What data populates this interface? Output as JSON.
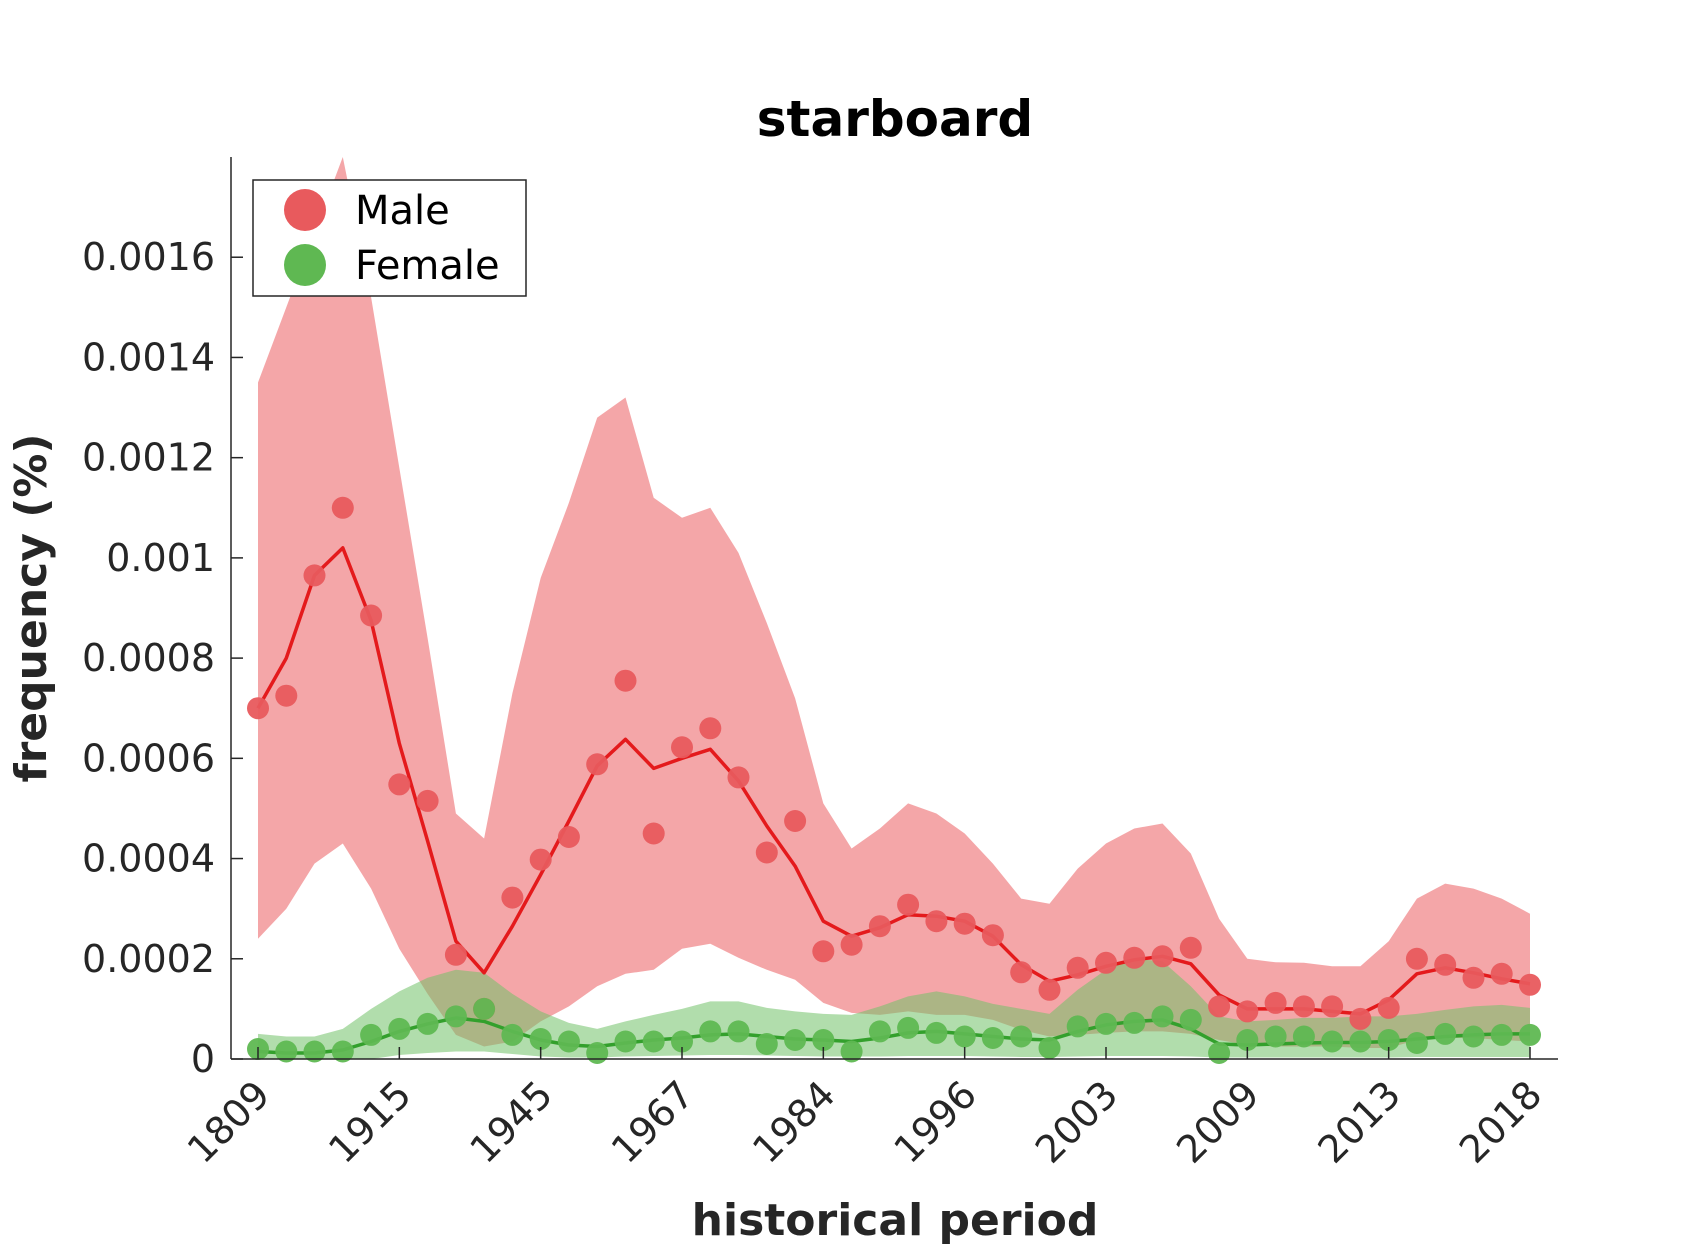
{
  "chart_data": {
    "type": "line",
    "title": "starboard",
    "xlabel": "historical period",
    "ylabel": "frequency (%)",
    "ylim": [
      0,
      0.0018
    ],
    "yticks": [
      "0",
      "0.0002",
      "0.0004",
      "0.0006",
      "0.0008",
      "0.001",
      "0.0012",
      "0.0014",
      "0.0016"
    ],
    "ytick_values": [
      0,
      0.0002,
      0.0004,
      0.0006,
      0.0008,
      0.001,
      0.0012,
      0.0014,
      0.0016
    ],
    "xtick_labels": [
      "1809",
      "1915",
      "1945",
      "1967",
      "1984",
      "1996",
      "2003",
      "2009",
      "2013",
      "2018"
    ],
    "xtick_indices": [
      0,
      5,
      10,
      15,
      20,
      25,
      30,
      35,
      40,
      45
    ],
    "legend_position": "top-left",
    "grid": false,
    "n_points": 46,
    "series": [
      {
        "name": "Male",
        "color": "#e41a1c",
        "points": [
          0.0007,
          0.000725,
          0.000965,
          0.0011,
          0.000885,
          0.000548,
          0.000515,
          0.000208,
          0.0001,
          0.000322,
          0.000398,
          0.000443,
          0.000588,
          0.000755,
          0.00045,
          0.000622,
          0.00066,
          0.000562,
          0.000412,
          0.000475,
          0.000215,
          0.000228,
          0.000265,
          0.000308,
          0.000275,
          0.00027,
          0.000247,
          0.000173,
          0.000138,
          0.000182,
          0.000192,
          0.000202,
          0.000205,
          0.000222,
          0.000105,
          9.5e-05,
          0.000112,
          0.000105,
          0.000105,
          8e-05,
          0.000102,
          0.0002,
          0.000188,
          0.000162,
          0.00017,
          0.000148
        ],
        "line": [
          0.0007,
          0.0008,
          0.000965,
          0.00102,
          0.000875,
          0.00063,
          0.000435,
          0.000235,
          0.000172,
          0.000265,
          0.000368,
          0.000475,
          0.000585,
          0.000638,
          0.00058,
          0.0006,
          0.000618,
          0.000555,
          0.000465,
          0.000385,
          0.000275,
          0.000245,
          0.000262,
          0.000288,
          0.000285,
          0.000275,
          0.000245,
          0.000188,
          0.000155,
          0.000168,
          0.000185,
          0.000198,
          0.000205,
          0.00019,
          0.000128,
          0.0001,
          0.0001,
          0.0001,
          9.5e-05,
          9e-05,
          0.000118,
          0.00017,
          0.000182,
          0.000172,
          0.00016,
          0.00015
        ],
        "upper": [
          0.00135,
          0.0015,
          0.00165,
          0.0018,
          0.00152,
          0.00118,
          0.00084,
          0.00049,
          0.00044,
          0.00073,
          0.00096,
          0.00111,
          0.00128,
          0.00132,
          0.00112,
          0.00108,
          0.0011,
          0.00101,
          0.00087,
          0.00072,
          0.00051,
          0.00042,
          0.00046,
          0.00051,
          0.00049,
          0.00045,
          0.00039,
          0.00032,
          0.00031,
          0.00038,
          0.00043,
          0.00046,
          0.00047,
          0.00041,
          0.00028,
          0.0002,
          0.000193,
          0.000192,
          0.000185,
          0.000185,
          0.000235,
          0.00032,
          0.00035,
          0.00034,
          0.00032,
          0.00029
        ],
        "lower": [
          0.00024,
          0.0003,
          0.00039,
          0.00043,
          0.00034,
          0.00022,
          0.00013,
          4.8e-05,
          2.5e-05,
          3.5e-05,
          7.5e-05,
          0.000105,
          0.000145,
          0.00017,
          0.000178,
          0.00022,
          0.00023,
          0.000202,
          0.000178,
          0.000158,
          0.000112,
          9.2e-05,
          8.8e-05,
          9.5e-05,
          8.8e-05,
          8.8e-05,
          7.8e-05,
          5.8e-05,
          4.5e-05,
          4.8e-05,
          5.2e-05,
          5.5e-05,
          5.5e-05,
          5e-05,
          3.8e-05,
          2.8e-05,
          2.5e-05,
          2.5e-05,
          2.5e-05,
          2.2e-05,
          2.2e-05,
          3.8e-05,
          4.2e-05,
          4.2e-05,
          3.8e-05,
          3.5e-05
        ]
      },
      {
        "name": "Female",
        "color": "#33a02c",
        "points": [
          2e-05,
          1.5e-05,
          1.5e-05,
          1.5e-05,
          4.8e-05,
          6e-05,
          7e-05,
          8.5e-05,
          0.0001,
          4.8e-05,
          4e-05,
          3.5e-05,
          1.2e-05,
          3.5e-05,
          3.5e-05,
          3.5e-05,
          5.5e-05,
          5.5e-05,
          3e-05,
          3.8e-05,
          3.8e-05,
          1.5e-05,
          5.5e-05,
          6.2e-05,
          5.2e-05,
          4.5e-05,
          4.2e-05,
          4.5e-05,
          2.2e-05,
          6.5e-05,
          7e-05,
          7.2e-05,
          8.5e-05,
          7.8e-05,
          1.2e-05,
          3.8e-05,
          4.5e-05,
          4.5e-05,
          3.5e-05,
          3.5e-05,
          3.8e-05,
          3.2e-05,
          5e-05,
          4.5e-05,
          4.8e-05,
          4.8e-05
        ],
        "line": [
          1.5e-05,
          1.2e-05,
          1.2e-05,
          1.8e-05,
          3.5e-05,
          5.5e-05,
          7e-05,
          8.2e-05,
          7.5e-05,
          5.5e-05,
          3.8e-05,
          2.8e-05,
          2.5e-05,
          3.2e-05,
          3.8e-05,
          4.2e-05,
          4.8e-05,
          5e-05,
          4.5e-05,
          4e-05,
          3.8e-05,
          3.5e-05,
          4.2e-05,
          5.2e-05,
          5.5e-05,
          5e-05,
          4.5e-05,
          4e-05,
          3.8e-05,
          5.5e-05,
          6.8e-05,
          7.5e-05,
          7.8e-05,
          6e-05,
          3e-05,
          2.8e-05,
          3e-05,
          3.2e-05,
          3.3e-05,
          3.3e-05,
          3.5e-05,
          4e-05,
          4.5e-05,
          4.8e-05,
          5e-05,
          5e-05
        ],
        "upper": [
          5e-05,
          4.5e-05,
          4.5e-05,
          6e-05,
          0.0001,
          0.000135,
          0.000162,
          0.000178,
          0.000172,
          0.00013,
          9.5e-05,
          7.2e-05,
          6e-05,
          7.5e-05,
          8.8e-05,
          0.0001,
          0.000115,
          0.000115,
          0.000102,
          9.5e-05,
          9e-05,
          8.8e-05,
          0.000105,
          0.000125,
          0.000135,
          0.000125,
          0.00011,
          0.0001,
          9e-05,
          0.000138,
          0.000178,
          0.0002,
          0.000195,
          0.000145,
          8.5e-05,
          7.5e-05,
          7.8e-05,
          8.2e-05,
          8.2e-05,
          8.5e-05,
          8.5e-05,
          9e-05,
          9.8e-05,
          0.000105,
          0.000108,
          0.000102
        ],
        "lower": [
          0.0,
          0.0,
          0.0,
          0.0,
          0.0,
          8e-06,
          1.2e-05,
          1.5e-05,
          1.5e-05,
          1e-05,
          5e-06,
          3e-06,
          3e-06,
          5e-06,
          6e-06,
          7e-06,
          8e-06,
          8e-06,
          7e-06,
          6e-06,
          5e-06,
          5e-06,
          5e-06,
          6e-06,
          6e-06,
          6e-06,
          5e-06,
          4e-06,
          4e-06,
          5e-06,
          6e-06,
          6e-06,
          6e-06,
          5e-06,
          3e-06,
          3e-06,
          3e-06,
          3e-06,
          3e-06,
          3e-06,
          3e-06,
          4e-06,
          4e-06,
          4e-06,
          4e-06,
          4e-06
        ]
      }
    ]
  }
}
